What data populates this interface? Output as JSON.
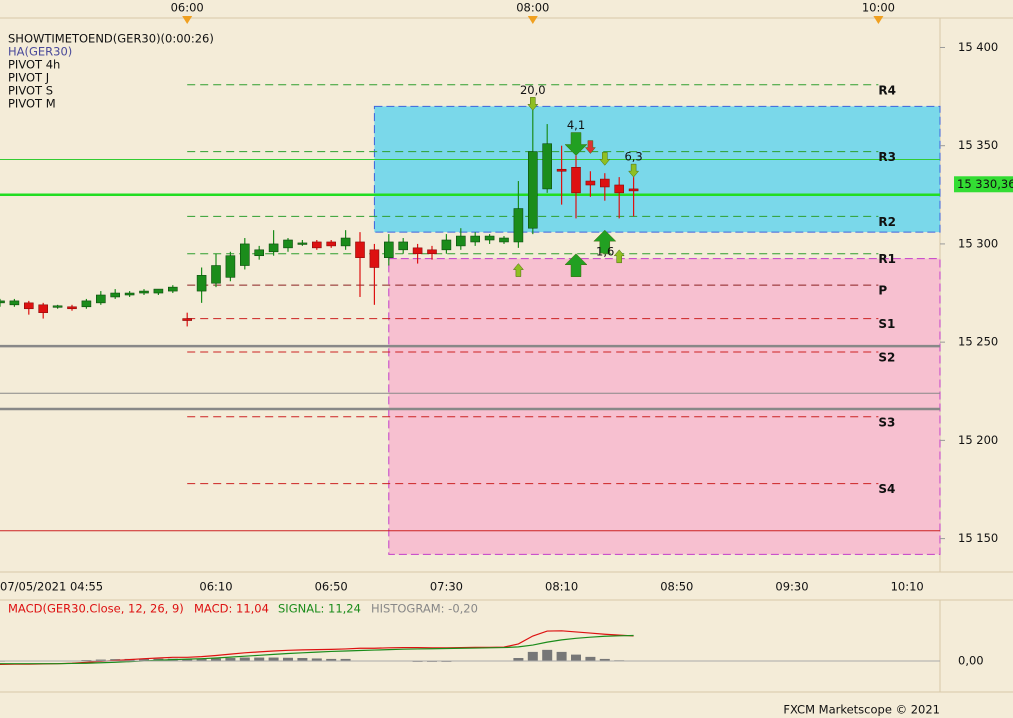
{
  "chart_data": [
    {
      "type": "candlestick",
      "legend_texts": [
        "SHOWTIMETOEND(GER30)(0:00:26)",
        "HA(GER30)",
        "PIVOT 4h",
        "PIVOT J",
        "PIVOT S",
        "PIVOT M"
      ],
      "categories": [
        "07/05/2021 04:55",
        null,
        null,
        null,
        null,
        null,
        null,
        null,
        null,
        null,
        null,
        null,
        null,
        null,
        null,
        "06:10",
        null,
        null,
        null,
        null,
        null,
        null,
        null,
        "06:50",
        null,
        null,
        null,
        null,
        null,
        null,
        null,
        "07:30",
        null,
        null,
        null,
        null,
        null,
        null,
        null,
        "08:10",
        null,
        null,
        null,
        null,
        null,
        null,
        null,
        "08:50",
        null,
        null,
        null,
        null,
        null,
        null,
        null,
        "09:30",
        null,
        null,
        null,
        null,
        null,
        null,
        null,
        "10:10",
        null
      ],
      "top_categories": [
        null,
        null,
        null,
        null,
        null,
        null,
        null,
        null,
        null,
        null,
        null,
        null,
        null,
        "06:00",
        null,
        null,
        null,
        null,
        null,
        null,
        null,
        null,
        null,
        null,
        null,
        null,
        null,
        null,
        null,
        null,
        null,
        null,
        null,
        null,
        null,
        null,
        null,
        "08:00",
        null,
        null,
        null,
        null,
        null,
        null,
        null,
        null,
        null,
        null,
        null,
        null,
        null,
        null,
        null,
        null,
        null,
        null,
        null,
        null,
        null,
        null,
        null,
        "10:00",
        null,
        null,
        null
      ],
      "open": [
        15270,
        15269,
        15270,
        15269,
        15268,
        15268,
        15268,
        15270,
        15273,
        15274,
        15275,
        15275,
        15276,
        15262,
        15276,
        15280,
        15283,
        15289,
        15294,
        15296,
        15298,
        15300,
        15301,
        15301,
        15299,
        15301,
        15297,
        15293,
        15297,
        15298,
        15297,
        15297,
        15299,
        15301,
        15302,
        15301,
        15301,
        15308,
        15328,
        15338,
        15339,
        15332,
        15333,
        15330,
        15328,
        null,
        null,
        null,
        null,
        null,
        null,
        null,
        null,
        null,
        null,
        null,
        null,
        null,
        null,
        null,
        null,
        null,
        null,
        null,
        null
      ],
      "high": [
        15272,
        15272,
        15271,
        15270,
        15269,
        15269,
        15272,
        15276,
        15277,
        15276,
        15277,
        15277,
        15279,
        15265,
        15288,
        15295,
        15296,
        15303,
        15299,
        15307,
        15303,
        15302,
        15302,
        15302,
        15307,
        15306,
        15300,
        15305,
        15303,
        15300,
        15299,
        15305,
        15308,
        15306,
        15305,
        15304,
        15332,
        15371,
        15361,
        15350,
        15345,
        15337,
        15336,
        15334,
        15334,
        null,
        null,
        null,
        null,
        null,
        null,
        null,
        null,
        null,
        null,
        null,
        null,
        null,
        null,
        null,
        null,
        null,
        null,
        null,
        null
      ],
      "low": [
        15268,
        15268,
        15264,
        15262,
        15267,
        15266,
        15267,
        15269,
        15272,
        15273,
        15274,
        15274,
        15275,
        15258,
        15270,
        15278,
        15281,
        15287,
        15292,
        15294,
        15296,
        15299,
        15297,
        15298,
        15297,
        15273,
        15269,
        15289,
        15295,
        15290,
        15292,
        15295,
        15297,
        15299,
        15300,
        15300,
        15298,
        15305,
        15326,
        15320,
        15313,
        15324,
        15322,
        15313,
        15314,
        null,
        null,
        null,
        null,
        null,
        null,
        null,
        null,
        null,
        null,
        null,
        null,
        null,
        null,
        null,
        null,
        null,
        null,
        null,
        null
      ],
      "close": [
        15271,
        15271,
        15267,
        15265,
        15268.5,
        15267,
        15271,
        15274,
        15275,
        15275,
        15276,
        15277,
        15278,
        15261,
        15284,
        15289,
        15294,
        15300,
        15297,
        15300,
        15302,
        15300.5,
        15298,
        15299,
        15303,
        15293,
        15288,
        15301,
        15301,
        15295,
        15295,
        15302,
        15304,
        15304,
        15304,
        15303,
        15318,
        15347,
        15351,
        15337,
        15326,
        15330,
        15329,
        15326,
        15327,
        null,
        null,
        null,
        null,
        null,
        null,
        null,
        null,
        null,
        null,
        null,
        null,
        null,
        null,
        null,
        null,
        null,
        null,
        null,
        null
      ],
      "up_color": "#1b8c1b",
      "down_color": "#dd1111",
      "ylim": [
        15133,
        15415
      ],
      "yticks": [
        {
          "value": 15400,
          "label": "15 400"
        },
        {
          "value": 15350,
          "label": "15 350"
        },
        {
          "value": 15300,
          "label": "15 300"
        },
        {
          "value": 15250,
          "label": "15 250"
        },
        {
          "value": 15200,
          "label": "15 200"
        },
        {
          "value": 15150,
          "label": "15 150"
        }
      ],
      "boxes": [
        {
          "start": 26,
          "top": 15370,
          "bottom": 15306,
          "color": "#7ad8ea",
          "border": "#3f63dd"
        },
        {
          "start": 27,
          "top": 15292.5,
          "bottom": 15142,
          "color": "#f7c0d0",
          "border": "#c33cc8"
        }
      ],
      "lines": [
        {
          "value": 15343,
          "color": "#33cc33"
        },
        {
          "value": 15325,
          "color": "#22dd22",
          "thick": true
        },
        {
          "value": 15248,
          "color": "#888888",
          "thick": true
        },
        {
          "value": 15224,
          "color": "#888888"
        },
        {
          "value": 15216,
          "color": "#888888",
          "thick": true
        },
        {
          "value": 15154,
          "color": "#cc2222"
        }
      ],
      "pivots": [
        {
          "name": "R4",
          "value": 15381,
          "color": "#2e9e2e"
        },
        {
          "name": "R3",
          "value": 15347,
          "color": "#2e9e2e"
        },
        {
          "name": "R2",
          "value": 15314,
          "color": "#2e9e2e"
        },
        {
          "name": "R1",
          "value": 15295,
          "color": "#2e9e2e"
        },
        {
          "name": "P",
          "value": 15279,
          "color": "#8b2020"
        },
        {
          "name": "S1",
          "value": 15262,
          "color": "#cc2222"
        },
        {
          "name": "S2",
          "value": 15245,
          "color": "#cc2222"
        },
        {
          "name": "S3",
          "value": 15212,
          "color": "#cc2222"
        },
        {
          "name": "S4",
          "value": 15178,
          "color": "#cc2222"
        }
      ],
      "last_price": {
        "value": 15330.36,
        "label": "15 330,36",
        "color": "#33dd33"
      },
      "signals": [
        {
          "at": 37,
          "value": 15368,
          "dir": "down",
          "color": "#8fbf22",
          "label": "20,0"
        },
        {
          "at": 40,
          "value": 15345,
          "dir": "down",
          "big": true,
          "color": "#22a022",
          "label": "4,1"
        },
        {
          "at": 41,
          "value": 15346,
          "dir": "down",
          "color": "#dd3333"
        },
        {
          "at": 42,
          "value": 15340,
          "dir": "down",
          "color": "#8fbf22"
        },
        {
          "at": 44,
          "value": 15334,
          "dir": "down",
          "color": "#8fbf22",
          "label": "6,3"
        },
        {
          "at": 40,
          "value": 15295,
          "dir": "up",
          "big": true,
          "color": "#22a022"
        },
        {
          "at": 42,
          "value": 15307,
          "dir": "up",
          "big": true,
          "color": "#22a022"
        },
        {
          "at": 36,
          "value": 15290,
          "dir": "up",
          "color": "#8fbf22"
        },
        {
          "at": 43,
          "value": 15297,
          "dir": "up",
          "color": "#8fbf22",
          "label": "1,6"
        }
      ]
    },
    {
      "type": "line",
      "title": "MACD(GER30.Close, 12, 26, 9)",
      "macd_text": "MACD: 11,04",
      "signal_text": "SIGNAL: 11,24",
      "histogram_text": "HISTOGRAM: -0,20",
      "series": [
        {
          "name": "MACD",
          "color": "#dd1111",
          "values": [
            -1.5,
            -1.4,
            -1.4,
            -1.3,
            -1.2,
            -1.0,
            -0.6,
            -0.2,
            0.2,
            0.6,
            1.0,
            1.3,
            1.6,
            1.6,
            1.9,
            2.4,
            3.0,
            3.6,
            4.0,
            4.4,
            4.7,
            4.9,
            5.0,
            5.1,
            5.3,
            5.6,
            5.6,
            5.8,
            5.9,
            5.9,
            5.8,
            5.8,
            5.9,
            6.0,
            6.0,
            6.1,
            7.5,
            11.0,
            13.2,
            13.3,
            12.8,
            12.3,
            11.8,
            11.4,
            11.04
          ]
        },
        {
          "name": "SIGNAL",
          "color": "#1b8c1b",
          "values": [
            -1.2,
            -1.2,
            -1.2,
            -1.2,
            -1.2,
            -1.1,
            -1.0,
            -0.8,
            -0.6,
            -0.3,
            0,
            0.3,
            0.6,
            0.8,
            1.0,
            1.3,
            1.7,
            2.1,
            2.5,
            2.9,
            3.3,
            3.6,
            3.9,
            4.2,
            4.4,
            4.6,
            4.8,
            5.0,
            5.2,
            5.3,
            5.4,
            5.5,
            5.6,
            5.7,
            5.8,
            5.9,
            6.2,
            7.0,
            8.3,
            9.3,
            10.0,
            10.5,
            10.9,
            11.1,
            11.24
          ]
        }
      ],
      "histogram": {
        "color": "#777777",
        "values": [
          -0.3,
          -0.2,
          -0.2,
          -0.1,
          0,
          0.1,
          0.4,
          0.6,
          0.8,
          0.9,
          1.0,
          1.0,
          1.0,
          0.8,
          0.9,
          1.1,
          1.3,
          1.5,
          1.5,
          1.5,
          1.4,
          1.3,
          1.1,
          0.9,
          0.9,
          0.2,
          0.1,
          0.1,
          -0.1,
          -0.4,
          -0.4,
          -0.4,
          0.1,
          0.1,
          0.1,
          0.1,
          1.3,
          4.0,
          4.9,
          4.0,
          2.8,
          1.8,
          0.9,
          0.3,
          -0.2
        ]
      },
      "ylim": [
        -13.7,
        26.9
      ],
      "yticks": [
        {
          "value": 0,
          "label": "0,00"
        }
      ]
    }
  ],
  "footer": "FXCM Marketscope © 2021"
}
